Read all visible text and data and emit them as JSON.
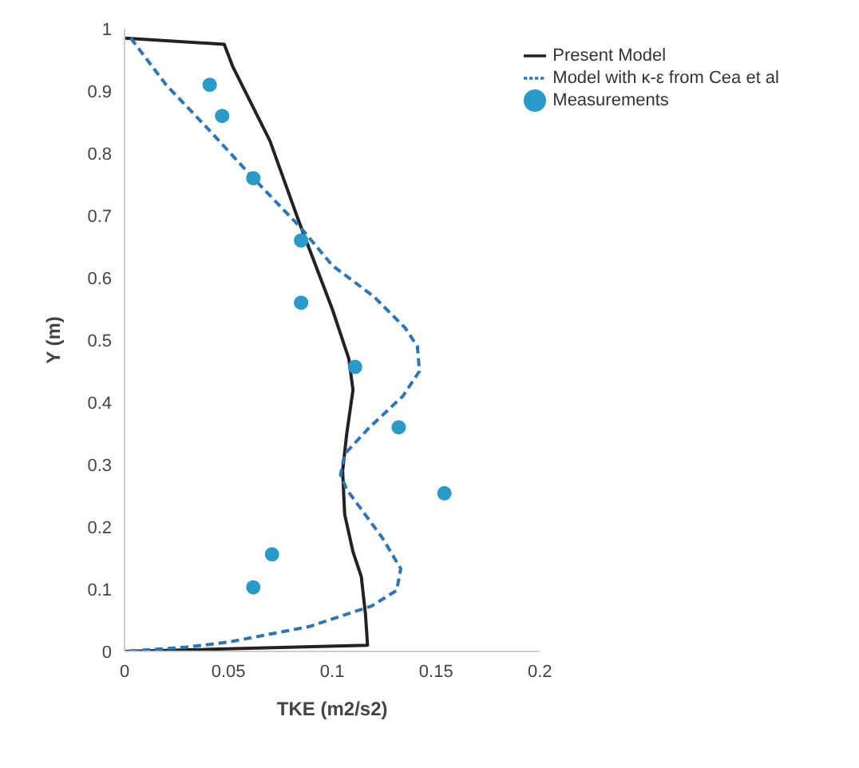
{
  "chart_data": {
    "type": "line",
    "xlabel": "TKE (m2/s2)",
    "ylabel": "Y (m)",
    "xlim": [
      0,
      0.2
    ],
    "xticks": [
      0,
      0.05,
      0.1,
      0.15,
      0.2
    ],
    "ylim": [
      0,
      1
    ],
    "yticks": [
      0,
      0.1,
      0.2,
      0.3,
      0.4,
      0.5,
      0.6,
      0.7,
      0.8,
      0.9,
      1
    ],
    "grid": false,
    "legend": "top right",
    "series": [
      {
        "name": "Present Model",
        "color": "#222222",
        "line_style": "solid",
        "marker": "none",
        "x": [
          0,
          0.048,
          0.052,
          0.07,
          0.084,
          0.1,
          0.108,
          0.11,
          0.107,
          0.105,
          0.106,
          0.11,
          0.114,
          0.116,
          0.117,
          0
        ],
        "values": [
          0.985,
          0.975,
          0.94,
          0.82,
          0.69,
          0.55,
          0.47,
          0.42,
          0.35,
          0.29,
          0.22,
          0.16,
          0.12,
          0.06,
          0.01,
          0
        ]
      },
      {
        "name": "Model with κ-ε from Cea et al",
        "color": "#2e75b6",
        "line_style": "dashed",
        "marker": "none",
        "x": [
          0.003,
          0.02,
          0.04,
          0.062,
          0.085,
          0.1,
          0.12,
          0.135,
          0.141,
          0.142,
          0.134,
          0.118,
          0.106,
          0.104,
          0.107,
          0.124,
          0.133,
          0.131,
          0.119,
          0.089,
          0.05,
          0.03,
          0
        ],
        "values": [
          0.985,
          0.91,
          0.84,
          0.76,
          0.68,
          0.62,
          0.57,
          0.52,
          0.49,
          0.45,
          0.41,
          0.36,
          0.317,
          0.284,
          0.26,
          0.183,
          0.133,
          0.098,
          0.073,
          0.04,
          0.015,
          0.007,
          0
        ]
      },
      {
        "name": "Measurements",
        "type": "scatter",
        "color": "#2a9bc9",
        "marker": "circle",
        "x": [
          0.041,
          0.047,
          0.062,
          0.085,
          0.085,
          0.111,
          0.132,
          0.154,
          0.071,
          0.062
        ],
        "values": [
          0.91,
          0.86,
          0.76,
          0.66,
          0.56,
          0.457,
          0.36,
          0.254,
          0.156,
          0.103
        ]
      }
    ]
  }
}
